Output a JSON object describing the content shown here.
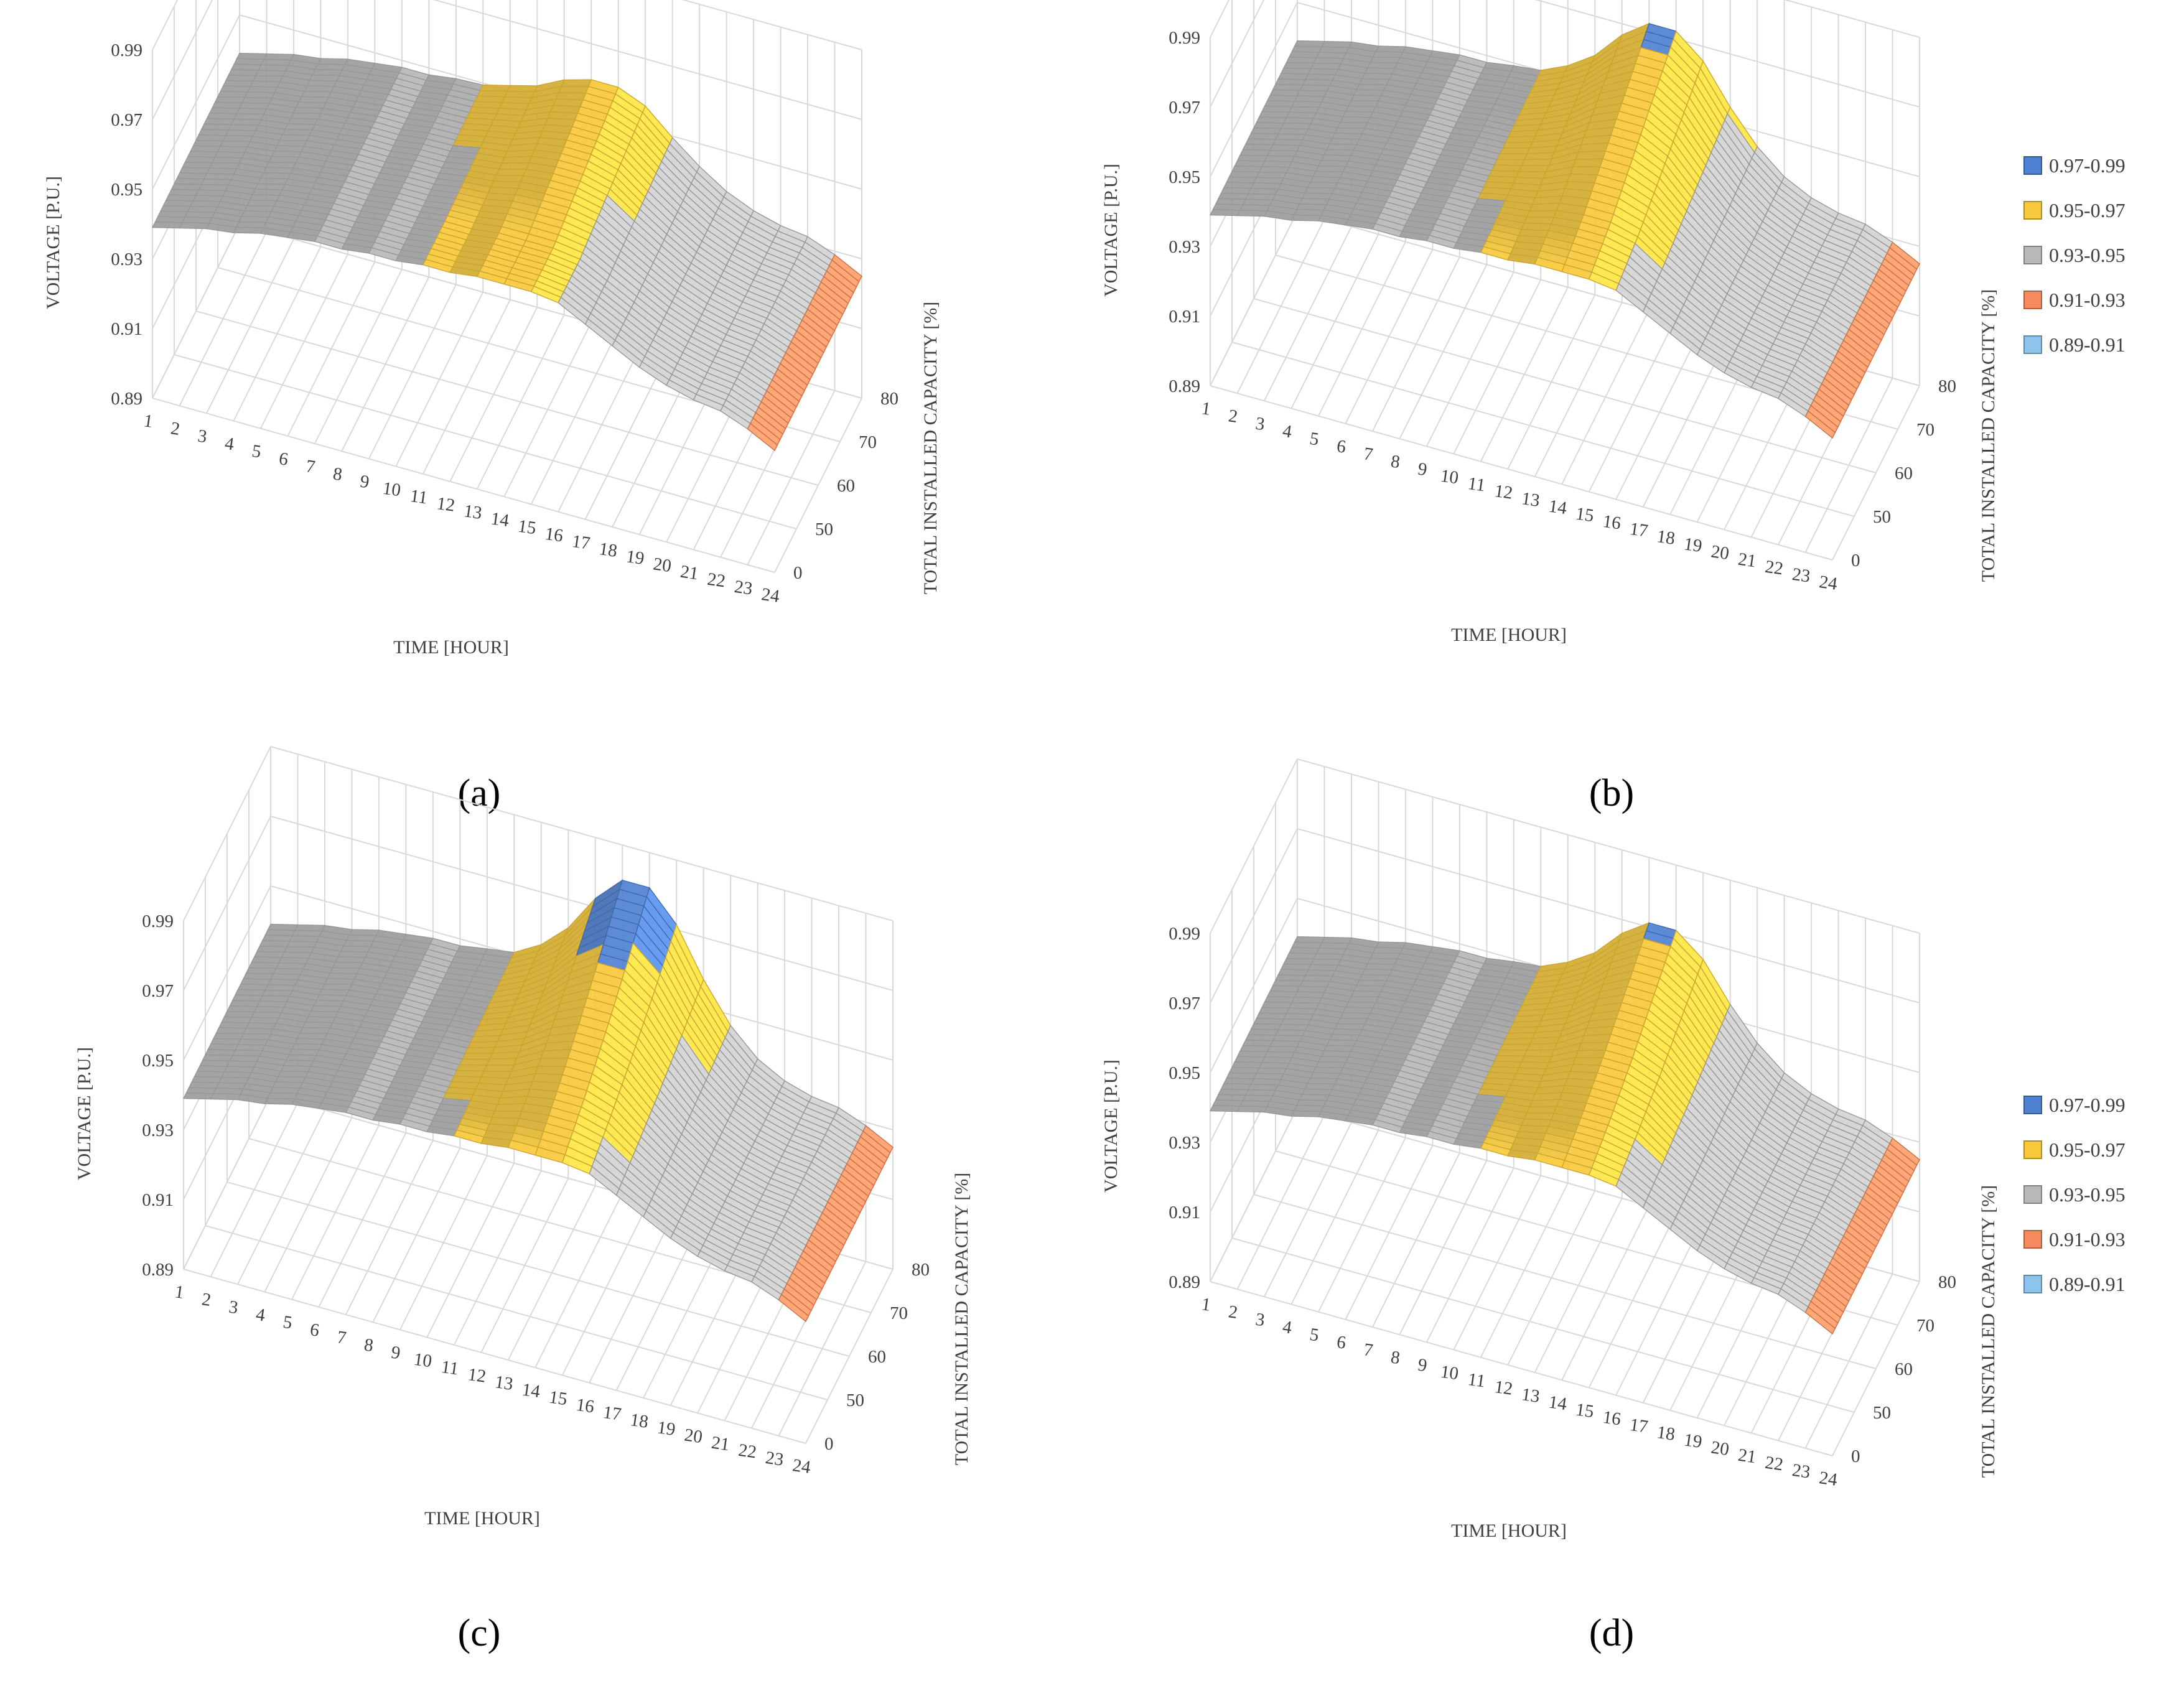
{
  "figure": {
    "colors": {
      "0.97-0.99": "#4f81d2",
      "0.95-0.97": "#f8c93a",
      "0.93-0.95": "#b8b8b8",
      "0.91-0.93": "#f58a5c",
      "0.89-0.91": "#8cc4ee"
    }
  },
  "chart_data": [
    {
      "type": "surface",
      "label": "(a)",
      "xlabel": "TIME [HOUR]",
      "ylabel": "VOLTAGE [P.U.]",
      "zlabel": "TOTAL INSTALLED CAPACITY [%]",
      "x_ticks": [
        "1",
        "2",
        "3",
        "4",
        "5",
        "6",
        "7",
        "8",
        "9",
        "10",
        "11",
        "12",
        "13",
        "14",
        "15",
        "16",
        "17",
        "18",
        "19",
        "20",
        "21",
        "22",
        "23",
        "24"
      ],
      "z_ticks": [
        "0",
        "50",
        "60",
        "70",
        "80"
      ],
      "y_ticks": [
        "0.89",
        "0.91",
        "0.93",
        "0.95",
        "0.97",
        "0.99"
      ],
      "ylim": [
        0.89,
        0.99
      ],
      "legend": [],
      "voltage_by_hour": [
        0.939,
        0.941,
        0.943,
        0.944,
        0.946,
        0.947,
        0.948,
        0.948,
        0.949,
        0.949,
        0.95,
        0.95,
        0.951,
        0.951,
        0.951,
        0.95,
        0.946,
        0.942,
        0.938,
        0.935,
        0.933,
        0.932,
        0.929,
        0.925
      ],
      "peak_by_capacity": [
        0.0,
        0.0,
        0.003,
        0.006,
        0.009
      ]
    },
    {
      "type": "surface",
      "label": "(b)",
      "xlabel": "TIME [HOUR]",
      "ylabel": "VOLTAGE [P.U.]",
      "zlabel": "TOTAL INSTALLED CAPACITY [%]",
      "x_ticks": [
        "1",
        "2",
        "3",
        "4",
        "5",
        "6",
        "7",
        "8",
        "9",
        "10",
        "11",
        "12",
        "13",
        "14",
        "15",
        "16",
        "17",
        "18",
        "19",
        "20",
        "21",
        "22",
        "23",
        "24"
      ],
      "z_ticks": [
        "0",
        "50",
        "60",
        "70",
        "80"
      ],
      "y_ticks": [
        "0.89",
        "0.91",
        "0.93",
        "0.95",
        "0.97",
        "0.99"
      ],
      "ylim": [
        0.89,
        0.99
      ],
      "legend": [
        "0.97-0.99",
        "0.95-0.97",
        "0.93-0.95",
        "0.91-0.93",
        "0.89-0.91"
      ],
      "voltage_by_hour": [
        0.939,
        0.941,
        0.943,
        0.944,
        0.946,
        0.947,
        0.948,
        0.948,
        0.949,
        0.949,
        0.95,
        0.95,
        0.951,
        0.951,
        0.951,
        0.95,
        0.946,
        0.942,
        0.938,
        0.935,
        0.933,
        0.932,
        0.929,
        0.925
      ],
      "peak_by_capacity": [
        0.0,
        0.004,
        0.01,
        0.016,
        0.022
      ]
    },
    {
      "type": "surface",
      "label": "(c)",
      "xlabel": "TIME [HOUR]",
      "ylabel": "VOLTAGE [P.U.]",
      "zlabel": "TOTAL INSTALLED CAPACITY [%]",
      "x_ticks": [
        "1",
        "2",
        "3",
        "4",
        "5",
        "6",
        "7",
        "8",
        "9",
        "10",
        "11",
        "12",
        "13",
        "14",
        "15",
        "16",
        "17",
        "18",
        "19",
        "20",
        "21",
        "22",
        "23",
        "24"
      ],
      "z_ticks": [
        "0",
        "50",
        "60",
        "70",
        "80"
      ],
      "y_ticks": [
        "0.89",
        "0.91",
        "0.93",
        "0.95",
        "0.97",
        "0.99"
      ],
      "ylim": [
        0.89,
        0.99
      ],
      "legend": [],
      "voltage_by_hour": [
        0.939,
        0.941,
        0.943,
        0.944,
        0.946,
        0.947,
        0.948,
        0.948,
        0.949,
        0.949,
        0.95,
        0.95,
        0.951,
        0.951,
        0.951,
        0.95,
        0.946,
        0.942,
        0.938,
        0.935,
        0.933,
        0.932,
        0.929,
        0.925
      ],
      "peak_by_capacity": [
        0.0,
        0.006,
        0.013,
        0.021,
        0.03
      ]
    },
    {
      "type": "surface",
      "label": "(d)",
      "xlabel": "TIME [HOUR]",
      "ylabel": "VOLTAGE [P.U.]",
      "zlabel": "TOTAL INSTALLED CAPACITY [%]",
      "x_ticks": [
        "1",
        "2",
        "3",
        "4",
        "5",
        "6",
        "7",
        "8",
        "9",
        "10",
        "11",
        "12",
        "13",
        "14",
        "15",
        "16",
        "17",
        "18",
        "19",
        "20",
        "21",
        "22",
        "23",
        "24"
      ],
      "z_ticks": [
        "0",
        "50",
        "60",
        "70",
        "80"
      ],
      "y_ticks": [
        "0.89",
        "0.91",
        "0.93",
        "0.95",
        "0.97",
        "0.99"
      ],
      "ylim": [
        0.89,
        0.99
      ],
      "legend": [
        "0.97-0.99",
        "0.95-0.97",
        "0.93-0.95",
        "0.91-0.93",
        "0.89-0.91"
      ],
      "voltage_by_hour": [
        0.939,
        0.941,
        0.943,
        0.944,
        0.946,
        0.947,
        0.948,
        0.948,
        0.949,
        0.949,
        0.95,
        0.95,
        0.951,
        0.951,
        0.951,
        0.95,
        0.946,
        0.942,
        0.938,
        0.935,
        0.933,
        0.932,
        0.929,
        0.925
      ],
      "peak_by_capacity": [
        0.0,
        0.004,
        0.009,
        0.015,
        0.021
      ]
    }
  ]
}
